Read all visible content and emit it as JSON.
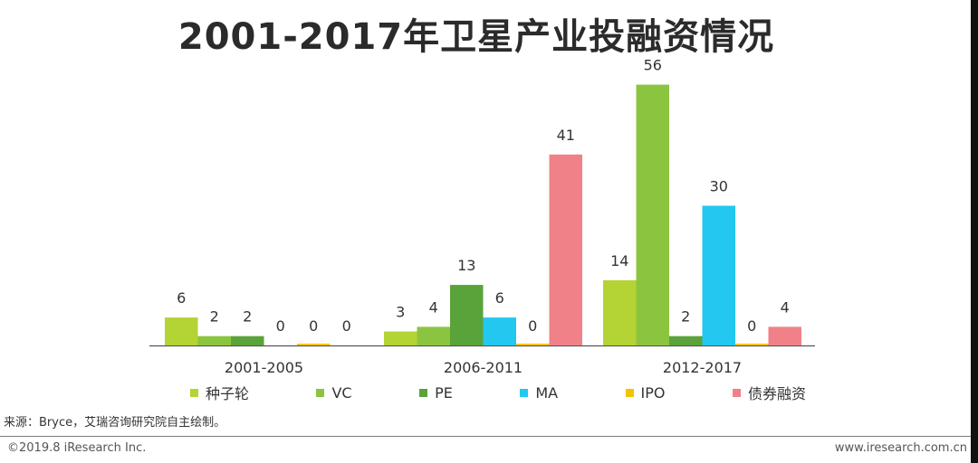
{
  "title": "2001-2017年卫星产业投融资情况",
  "source": "来源：Bryce，艾瑞咨询研究院自主绘制。",
  "footer": {
    "copyright": "©2019.8 iResearch Inc.",
    "website": "www.iresearch.com.cn"
  },
  "chart_data": {
    "type": "bar",
    "title": "2001-2017年卫星产业投融资情况",
    "categories": [
      "2001-2005",
      "2006-2011",
      "2012-2017"
    ],
    "series": [
      {
        "name": "种子轮",
        "color": "#b4d334",
        "values": [
          6,
          3,
          14
        ]
      },
      {
        "name": "VC",
        "color": "#8bc53f",
        "values": [
          2,
          4,
          56
        ]
      },
      {
        "name": "PE",
        "color": "#5aa33a",
        "values": [
          2,
          13,
          2
        ]
      },
      {
        "name": "MA",
        "color": "#22c8f0",
        "values": [
          0,
          6,
          30
        ]
      },
      {
        "name": "IPO",
        "color": "#f5c400",
        "values": [
          0,
          0,
          0
        ]
      },
      {
        "name": "债券融资",
        "color": "#f08188",
        "values": [
          0,
          41,
          4
        ]
      }
    ],
    "legend_position": "bottom",
    "grid": false
  }
}
